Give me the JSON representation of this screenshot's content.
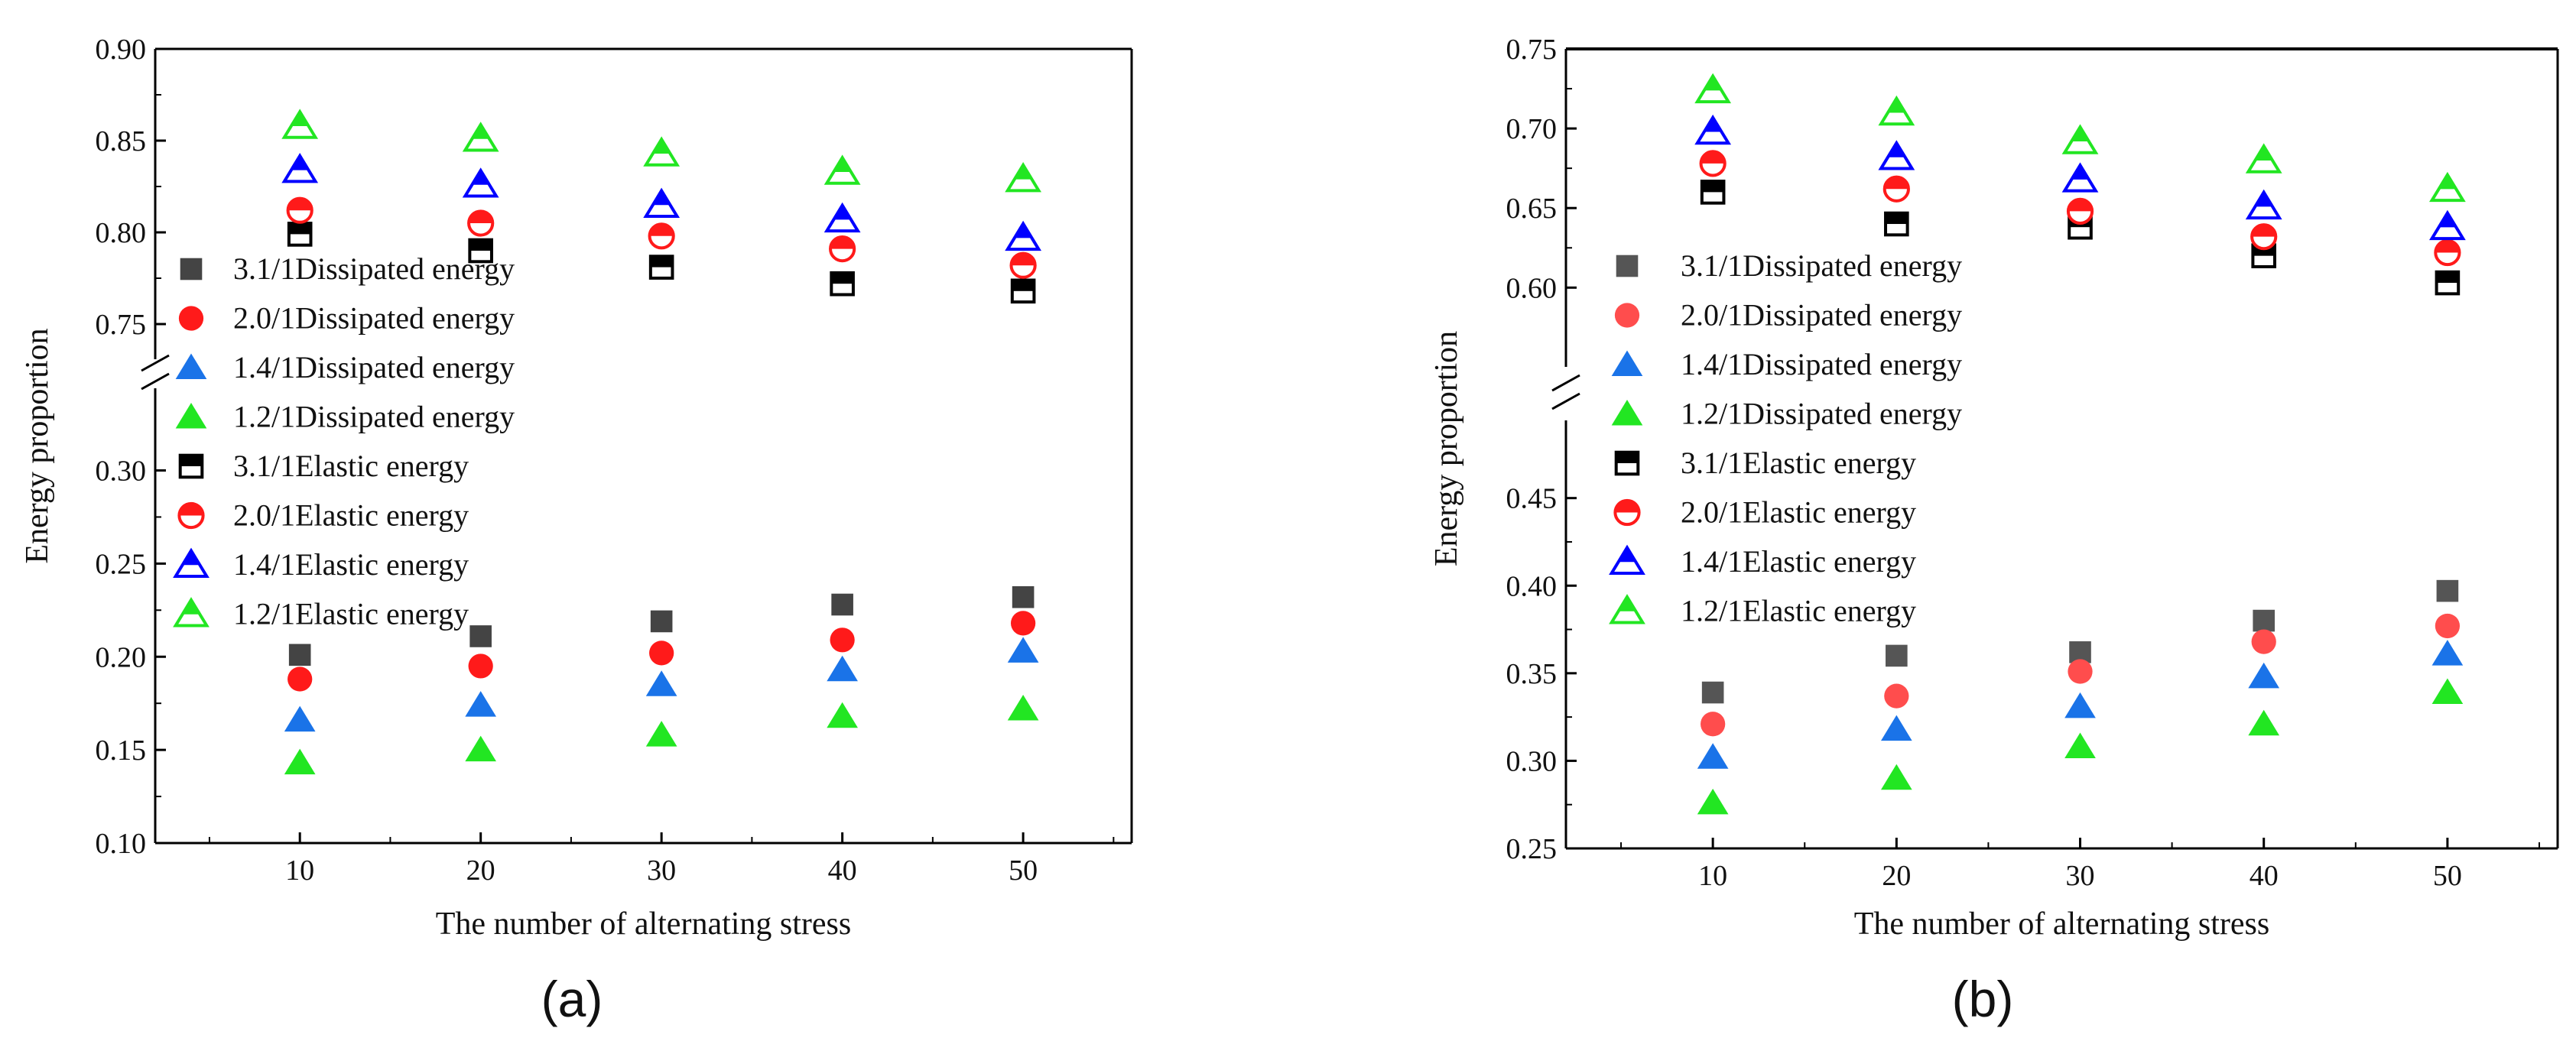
{
  "chart_data": [
    {
      "type": "scatter",
      "panel_label": "(a)",
      "xlabel": "The number of alternating stress",
      "ylabel": "Energy proportion",
      "x": [
        10,
        20,
        30,
        40,
        50
      ],
      "xlim": [
        2,
        56
      ],
      "x_ticks": [
        "10",
        "20",
        "30",
        "40",
        "50"
      ],
      "ylim_lower": [
        0.1,
        0.34
      ],
      "ylim_upper": [
        0.735,
        0.9
      ],
      "y_ticks_lower": [
        "0.10",
        "0.15",
        "0.20",
        "0.25",
        "0.30"
      ],
      "y_ticks_upper": [
        "0.75",
        "0.80",
        "0.85",
        "0.90"
      ],
      "axis_break": true,
      "grid": false,
      "legend_position": "left",
      "series": [
        {
          "name": "3.1/1Dissipated energy",
          "marker": "square",
          "color": "#444444",
          "values": [
            0.201,
            0.211,
            0.219,
            0.228,
            0.232
          ]
        },
        {
          "name": "2.0/1Dissipated energy",
          "marker": "circle",
          "color": "#ff1a1a",
          "values": [
            0.188,
            0.195,
            0.202,
            0.209,
            0.218
          ]
        },
        {
          "name": "1.4/1Dissipated energy",
          "marker": "triangle",
          "color": "#1a73e8",
          "values": [
            0.166,
            0.174,
            0.185,
            0.193,
            0.203
          ]
        },
        {
          "name": "1.2/1Dissipated energy",
          "marker": "triangle",
          "color": "#22e622",
          "values": [
            0.143,
            0.15,
            0.158,
            0.168,
            0.172
          ]
        },
        {
          "name": "3.1/1Elastic energy",
          "marker": "half-square",
          "color": "#000000",
          "values": [
            0.799,
            0.79,
            0.781,
            0.772,
            0.768
          ]
        },
        {
          "name": "2.0/1Elastic energy",
          "marker": "half-circle",
          "color": "#ff1a1a",
          "values": [
            0.812,
            0.805,
            0.798,
            0.791,
            0.782
          ]
        },
        {
          "name": "1.4/1Elastic energy",
          "marker": "half-triangle",
          "color": "#0000ff",
          "values": [
            0.834,
            0.826,
            0.815,
            0.807,
            0.797
          ]
        },
        {
          "name": "1.2/1Elastic energy",
          "marker": "half-triangle",
          "color": "#22e622",
          "values": [
            0.858,
            0.851,
            0.843,
            0.833,
            0.829
          ]
        }
      ]
    },
    {
      "type": "scatter",
      "panel_label": "(b)",
      "xlabel": "The number of alternating stress",
      "ylabel": "Energy proportion",
      "x": [
        10,
        20,
        30,
        40,
        50
      ],
      "xlim": [
        2,
        56
      ],
      "x_ticks": [
        "10",
        "20",
        "30",
        "40",
        "50"
      ],
      "ylim_lower": [
        0.25,
        0.49
      ],
      "ylim_upper": [
        0.555,
        0.75
      ],
      "y_ticks_lower": [
        "0.25",
        "0.30",
        "0.35",
        "0.40",
        "0.45"
      ],
      "y_ticks_upper": [
        "0.60",
        "0.65",
        "0.70",
        "0.75"
      ],
      "axis_break": true,
      "grid": false,
      "legend_position": "left",
      "series": [
        {
          "name": "3.1/1Dissipated energy",
          "marker": "square",
          "color": "#555555",
          "values": [
            0.339,
            0.36,
            0.362,
            0.38,
            0.397
          ]
        },
        {
          "name": "2.0/1Dissipated energy",
          "marker": "circle",
          "color": "#ff4d4d",
          "values": [
            0.321,
            0.337,
            0.351,
            0.368,
            0.377
          ]
        },
        {
          "name": "1.4/1Dissipated energy",
          "marker": "triangle",
          "color": "#1a73e8",
          "values": [
            0.302,
            0.318,
            0.331,
            0.348,
            0.361
          ]
        },
        {
          "name": "1.2/1Dissipated energy",
          "marker": "triangle",
          "color": "#22e622",
          "values": [
            0.276,
            0.29,
            0.308,
            0.321,
            0.339
          ]
        },
        {
          "name": "3.1/1Elastic energy",
          "marker": "half-square",
          "color": "#000000",
          "values": [
            0.66,
            0.64,
            0.638,
            0.62,
            0.603
          ]
        },
        {
          "name": "2.0/1Elastic energy",
          "marker": "half-circle",
          "color": "#ff1a1a",
          "values": [
            0.678,
            0.662,
            0.648,
            0.632,
            0.622
          ]
        },
        {
          "name": "1.4/1Elastic energy",
          "marker": "half-triangle",
          "color": "#0000ff",
          "values": [
            0.698,
            0.682,
            0.668,
            0.651,
            0.638
          ]
        },
        {
          "name": "1.2/1Elastic energy",
          "marker": "half-triangle",
          "color": "#22e622",
          "values": [
            0.724,
            0.71,
            0.692,
            0.68,
            0.662
          ]
        }
      ]
    }
  ]
}
